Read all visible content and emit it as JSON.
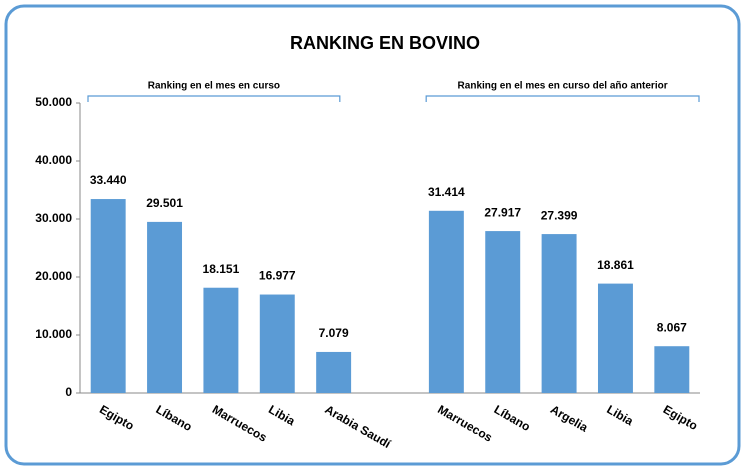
{
  "chart_data": {
    "type": "bar",
    "title": "RANKING EN BOVINO",
    "annotations": [
      "Ranking en el mes en curso",
      "Ranking en el mes en curso del año anterior"
    ],
    "categories": [
      "Egipto",
      "Líbano",
      "Marruecos",
      "Libia",
      "Arabia Saudí",
      null,
      "Marruecos",
      "Líbano",
      "Argelia",
      "Libia",
      "Egipto"
    ],
    "values": [
      33440,
      29501,
      18151,
      16977,
      7079,
      null,
      31414,
      27917,
      27399,
      18861,
      8067
    ],
    "value_labels": [
      "33.440",
      "29.501",
      "18.151",
      "16.977",
      "7.079",
      null,
      "31.414",
      "27.917",
      "27.399",
      "18.861",
      "8.067"
    ],
    "color": "#5b9bd5",
    "ylim": [
      0,
      50000
    ],
    "yticks": [
      0,
      {
        "value": 10000,
        "label": "10.000"
      },
      {
        "value": 20000,
        "label": "20.000"
      },
      {
        "value": 30000,
        "label": "30.000"
      },
      {
        "value": 40000,
        "label": "40.000"
      },
      {
        "value": 50000,
        "label": "50.000"
      }
    ],
    "grid": false
  }
}
